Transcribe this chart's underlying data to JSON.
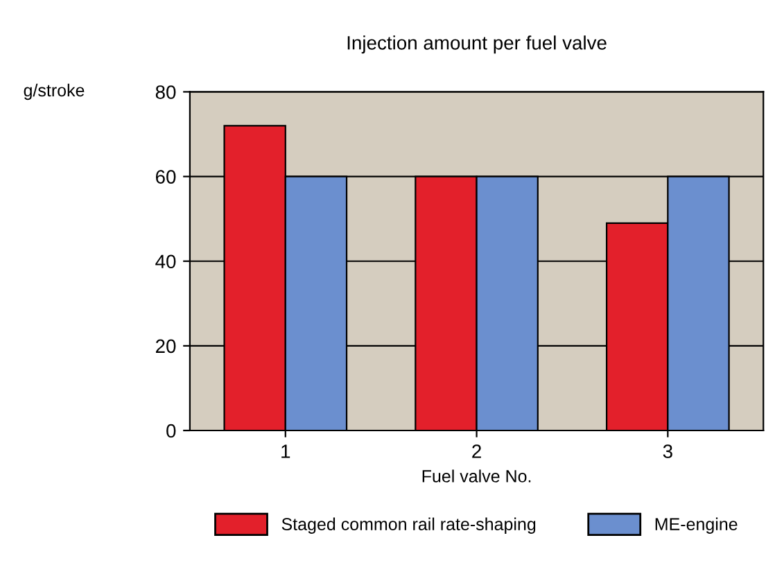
{
  "chart_data": {
    "type": "bar",
    "title": "Injection amount per fuel valve",
    "xlabel": "Fuel valve No.",
    "ylabel": "g/stroke",
    "categories": [
      "1",
      "2",
      "3"
    ],
    "series": [
      {
        "name": "Staged common rail rate-shaping",
        "color": "#e3202b",
        "values": [
          72,
          60,
          49
        ]
      },
      {
        "name": "ME-engine",
        "color": "#6b8fcf",
        "values": [
          60,
          60,
          60
        ]
      }
    ],
    "ylim": [
      0,
      80
    ],
    "yticks": [
      0,
      20,
      40,
      60,
      80
    ],
    "grid": "y",
    "legend": "bottom"
  }
}
